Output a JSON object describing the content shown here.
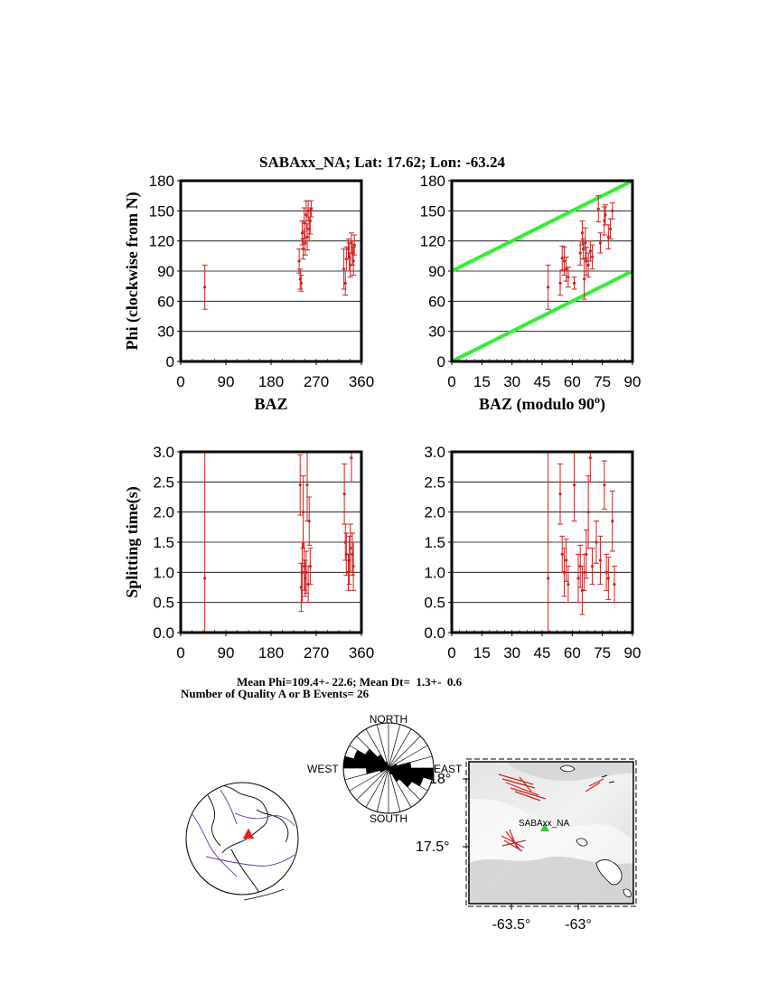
{
  "header": {
    "title": "SABAxx_NA; Lat:  17.62;  Lon:  -63.24"
  },
  "stats": {
    "line1": "Mean Phi=109.4+- 22.6; Mean Dt=  1.3+-  0.6",
    "line2": "Number of Quality A or B Events= 26"
  },
  "colors": {
    "data": "#cc2222",
    "reference_line": "#33ee33",
    "grid": "#000000",
    "rose_fill": "#000000",
    "station": "#33cc33",
    "globe_outline": "#6633aa"
  },
  "chart_data": [
    {
      "type": "scatter",
      "ylabel": "Phi (clockwise from N)",
      "xlabel": "BAZ",
      "xlim": [
        0,
        360
      ],
      "ylim": [
        0,
        180
      ],
      "xticks": [
        "0",
        "90",
        "180",
        "270",
        "360"
      ],
      "yticks": [
        "0",
        "30",
        "60",
        "90",
        "120",
        "150",
        "180"
      ],
      "grid": "horizontal",
      "points": [
        {
          "x": 48,
          "y": 74,
          "err": 22
        },
        {
          "x": 236,
          "y": 100,
          "err": 12
        },
        {
          "x": 238,
          "y": 82,
          "err": 10
        },
        {
          "x": 240,
          "y": 78,
          "err": 8
        },
        {
          "x": 242,
          "y": 128,
          "err": 12
        },
        {
          "x": 244,
          "y": 112,
          "err": 10
        },
        {
          "x": 246,
          "y": 138,
          "err": 15
        },
        {
          "x": 248,
          "y": 118,
          "err": 12
        },
        {
          "x": 250,
          "y": 146,
          "err": 14
        },
        {
          "x": 252,
          "y": 124,
          "err": 13
        },
        {
          "x": 254,
          "y": 150,
          "err": 10
        },
        {
          "x": 256,
          "y": 132,
          "err": 12
        },
        {
          "x": 258,
          "y": 140,
          "err": 13
        },
        {
          "x": 260,
          "y": 152,
          "err": 8
        },
        {
          "x": 325,
          "y": 92,
          "err": 20
        },
        {
          "x": 328,
          "y": 78,
          "err": 12
        },
        {
          "x": 330,
          "y": 102,
          "err": 12
        },
        {
          "x": 334,
          "y": 112,
          "err": 10
        },
        {
          "x": 336,
          "y": 104,
          "err": 14
        },
        {
          "x": 338,
          "y": 96,
          "err": 12
        },
        {
          "x": 340,
          "y": 118,
          "err": 10
        },
        {
          "x": 342,
          "y": 108,
          "err": 12
        },
        {
          "x": 344,
          "y": 100,
          "err": 14
        },
        {
          "x": 346,
          "y": 116,
          "err": 10
        }
      ]
    },
    {
      "type": "scatter",
      "xlabel": "BAZ (modulo 90°)",
      "xlim": [
        0,
        90
      ],
      "ylim": [
        0,
        180
      ],
      "xticks": [
        "0",
        "15",
        "30",
        "45",
        "60",
        "75",
        "90"
      ],
      "yticks": [
        "0",
        "30",
        "60",
        "90",
        "120",
        "150",
        "180"
      ],
      "grid": "horizontal",
      "ref_lines": [
        {
          "x": [
            0,
            90
          ],
          "y": [
            0,
            90
          ]
        },
        {
          "x": [
            0,
            90
          ],
          "y": [
            90,
            180
          ]
        }
      ],
      "points": [
        {
          "x": 48,
          "y": 74,
          "err": 22
        },
        {
          "x": 54,
          "y": 78,
          "err": 12
        },
        {
          "x": 55,
          "y": 103,
          "err": 12
        },
        {
          "x": 56,
          "y": 100,
          "err": 14
        },
        {
          "x": 57,
          "y": 92,
          "err": 12
        },
        {
          "x": 58,
          "y": 84,
          "err": 10
        },
        {
          "x": 61,
          "y": 78,
          "err": 6
        },
        {
          "x": 64,
          "y": 108,
          "err": 12
        },
        {
          "x": 65,
          "y": 128,
          "err": 12
        },
        {
          "x": 65.5,
          "y": 112,
          "err": 10
        },
        {
          "x": 66,
          "y": 82,
          "err": 20
        },
        {
          "x": 66.5,
          "y": 118,
          "err": 15
        },
        {
          "x": 67,
          "y": 100,
          "err": 14
        },
        {
          "x": 68,
          "y": 96,
          "err": 12
        },
        {
          "x": 69,
          "y": 110,
          "err": 10
        },
        {
          "x": 70,
          "y": 104,
          "err": 12
        },
        {
          "x": 73,
          "y": 152,
          "err": 13
        },
        {
          "x": 74,
          "y": 118,
          "err": 10
        },
        {
          "x": 76,
          "y": 140,
          "err": 14
        },
        {
          "x": 76.5,
          "y": 146,
          "err": 10
        },
        {
          "x": 78,
          "y": 124,
          "err": 12
        },
        {
          "x": 79,
          "y": 132,
          "err": 10
        },
        {
          "x": 80,
          "y": 150,
          "err": 8
        }
      ]
    },
    {
      "type": "scatter",
      "ylabel": "Splitting time(s)",
      "xlim": [
        0,
        360
      ],
      "ylim": [
        0,
        3
      ],
      "xticks": [
        "0",
        "90",
        "180",
        "270",
        "360"
      ],
      "yticks": [
        "0.0",
        "0.5",
        "1.0",
        "1.5",
        "2.0",
        "2.5",
        "3.0"
      ],
      "grid": "horizontal",
      "points": [
        {
          "x": 48,
          "y": 0.9,
          "err": 3.0
        },
        {
          "x": 238,
          "y": 2.45,
          "err": 0.5
        },
        {
          "x": 240,
          "y": 0.75,
          "err": 0.4
        },
        {
          "x": 242,
          "y": 1.0,
          "err": 0.5
        },
        {
          "x": 244,
          "y": 2.0,
          "err": 0.6
        },
        {
          "x": 246,
          "y": 1.1,
          "err": 0.4
        },
        {
          "x": 248,
          "y": 0.9,
          "err": 0.3
        },
        {
          "x": 250,
          "y": 1.0,
          "err": 0.35
        },
        {
          "x": 252,
          "y": 2.45,
          "err": 0.6
        },
        {
          "x": 254,
          "y": 0.8,
          "err": 0.3
        },
        {
          "x": 256,
          "y": 1.85,
          "err": 0.4
        },
        {
          "x": 258,
          "y": 1.1,
          "err": 0.3
        },
        {
          "x": 326,
          "y": 2.3,
          "err": 0.5
        },
        {
          "x": 328,
          "y": 1.5,
          "err": 0.3
        },
        {
          "x": 330,
          "y": 1.3,
          "err": 0.35
        },
        {
          "x": 334,
          "y": 1.0,
          "err": 0.3
        },
        {
          "x": 336,
          "y": 1.2,
          "err": 0.4
        },
        {
          "x": 338,
          "y": 1.4,
          "err": 0.4
        },
        {
          "x": 340,
          "y": 2.9,
          "err": 0.4
        },
        {
          "x": 342,
          "y": 1.3,
          "err": 0.35
        },
        {
          "x": 344,
          "y": 1.1,
          "err": 0.4
        }
      ]
    },
    {
      "type": "scatter",
      "xlim": [
        0,
        90
      ],
      "ylim": [
        0,
        3
      ],
      "xticks": [
        "0",
        "15",
        "30",
        "45",
        "60",
        "75",
        "90"
      ],
      "yticks": [
        "0.0",
        "0.5",
        "1.0",
        "1.5",
        "2.0",
        "2.5",
        "3.0"
      ],
      "grid": "horizontal",
      "points": [
        {
          "x": 48,
          "y": 0.9,
          "err": 3.0
        },
        {
          "x": 54,
          "y": 2.3,
          "err": 0.5
        },
        {
          "x": 55,
          "y": 1.3,
          "err": 0.3
        },
        {
          "x": 56,
          "y": 1.0,
          "err": 0.4
        },
        {
          "x": 57,
          "y": 1.2,
          "err": 0.35
        },
        {
          "x": 58,
          "y": 0.8,
          "err": 0.3
        },
        {
          "x": 61,
          "y": 2.45,
          "err": 0.6
        },
        {
          "x": 63,
          "y": 0.9,
          "err": 0.4
        },
        {
          "x": 64,
          "y": 1.1,
          "err": 0.35
        },
        {
          "x": 65,
          "y": 0.7,
          "err": 0.4
        },
        {
          "x": 66,
          "y": 1.0,
          "err": 0.3
        },
        {
          "x": 67,
          "y": 1.3,
          "err": 0.4
        },
        {
          "x": 68,
          "y": 2.0,
          "err": 0.6
        },
        {
          "x": 69,
          "y": 2.9,
          "err": 0.4
        },
        {
          "x": 70,
          "y": 1.1,
          "err": 0.3
        },
        {
          "x": 72,
          "y": 1.5,
          "err": 0.35
        },
        {
          "x": 74,
          "y": 1.2,
          "err": 0.4
        },
        {
          "x": 76,
          "y": 2.45,
          "err": 0.4
        },
        {
          "x": 77,
          "y": 1.0,
          "err": 0.3
        },
        {
          "x": 78,
          "y": 0.9,
          "err": 0.35
        },
        {
          "x": 80,
          "y": 1.85,
          "err": 0.5
        },
        {
          "x": 81,
          "y": 0.8,
          "err": 0.3
        }
      ]
    }
  ],
  "rose": {
    "north": "NORTH",
    "south": "SOUTH",
    "east": "EAST",
    "west": "WEST",
    "bin_width_deg": 15,
    "petals": [
      {
        "az": 97.5,
        "r": 1.0
      },
      {
        "az": 112.5,
        "r": 0.8
      },
      {
        "az": 127.5,
        "r": 0.6
      },
      {
        "az": 142.5,
        "r": 0.35
      },
      {
        "az": 157.5,
        "r": 0.15
      },
      {
        "az": 82.5,
        "r": 0.5
      },
      {
        "az": 67.5,
        "r": 0.2
      }
    ]
  },
  "map": {
    "ylabel_18": "18°",
    "ylabel_175": "17.5°",
    "xlabel_635": "-63.5°",
    "xlabel_63": "-63°",
    "station_label": "SABAxx_NA"
  }
}
